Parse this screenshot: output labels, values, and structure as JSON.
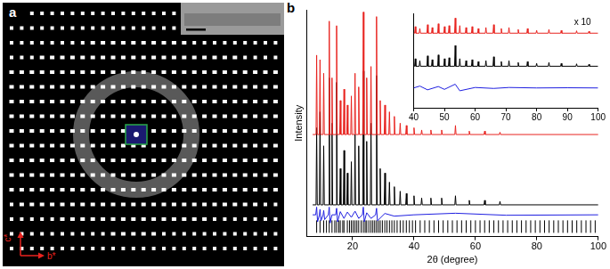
{
  "figure": {
    "panel_labels": [
      "a",
      "b"
    ],
    "image_axes": [
      "c*",
      "b*"
    ]
  },
  "chart_data": [
    {
      "type": "line",
      "x_label": "2θ (degree)",
      "y_label": "Intensity",
      "xlim": [
        5,
        100
      ],
      "xticks": [
        20,
        40,
        60,
        80,
        100
      ],
      "ylim": [
        0,
        100
      ],
      "tick_labels": "x",
      "grid": false,
      "series": [
        {
          "color": "#e8231f",
          "type": "line",
          "x": [
            7,
            8.1,
            8.3,
            8.5,
            9.2,
            9.4,
            9.6,
            10.4,
            10.6,
            10.8,
            12.2,
            12.4,
            12.6,
            13.1,
            13.3,
            13.5,
            14.6,
            14.8,
            15,
            15.8,
            16,
            16.2,
            17,
            17.2,
            17.4,
            18.1,
            18.3,
            18.5,
            19.4,
            19.6,
            19.8,
            20.6,
            20.8,
            21,
            21.8,
            22,
            22.2,
            23.3,
            23.5,
            23.7,
            24.4,
            24.6,
            24.8,
            25.8,
            26,
            26.2,
            27.6,
            27.8,
            28,
            28.8,
            29,
            29.2,
            30.3,
            30.5,
            30.7,
            31.8,
            32,
            32.2,
            33.4,
            33.6,
            33.8,
            35.3,
            35.5,
            35.7,
            37.3,
            37.5,
            37.7,
            39.8,
            40,
            40.2,
            42.3,
            42.5,
            42.7,
            45.3,
            45.5,
            45.7,
            48.8,
            49,
            49.2,
            53.3,
            53.5,
            53.7,
            57.8,
            58,
            58.2,
            62.8,
            63,
            63.2,
            67.8,
            68,
            68.2,
            100
          ],
          "values": [
            45,
            45,
            80,
            45,
            45,
            78,
            45,
            45,
            72,
            45,
            45,
            95,
            45,
            45,
            70,
            45,
            45,
            93,
            45,
            45,
            60,
            45,
            45,
            65,
            45,
            45,
            58,
            45,
            45,
            62,
            45,
            45,
            72,
            45,
            45,
            66,
            45,
            45,
            99,
            45,
            45,
            70,
            45,
            45,
            75,
            45,
            45,
            97,
            45,
            45,
            60,
            45,
            45,
            58,
            45,
            45,
            55,
            45,
            45,
            53,
            45,
            45,
            50,
            45,
            45,
            49,
            45,
            45,
            48,
            45,
            45,
            47,
            45,
            45,
            47,
            45,
            45,
            47,
            45,
            45,
            49,
            45,
            45,
            46.5,
            45,
            45,
            46.5,
            45,
            45,
            46,
            45,
            45
          ]
        },
        {
          "color": "#000000",
          "type": "line",
          "x": [
            7,
            8.1,
            8.3,
            8.5,
            9.2,
            9.4,
            9.6,
            10.4,
            10.6,
            10.8,
            12.2,
            12.4,
            12.6,
            13.1,
            13.3,
            13.5,
            14.6,
            14.8,
            15,
            15.8,
            16,
            16.2,
            17,
            17.2,
            17.4,
            18.1,
            18.3,
            18.5,
            19.4,
            19.6,
            19.8,
            20.6,
            20.8,
            21,
            21.8,
            22,
            22.2,
            23.3,
            23.5,
            23.7,
            24.4,
            24.6,
            24.8,
            25.8,
            26,
            26.2,
            27.6,
            27.8,
            28,
            28.8,
            29,
            29.2,
            30.3,
            30.5,
            30.7,
            31.8,
            32,
            32.2,
            33.4,
            33.6,
            33.8,
            35.3,
            35.5,
            35.7,
            37.3,
            37.5,
            37.7,
            39.8,
            40,
            40.2,
            42.3,
            42.5,
            42.7,
            45.3,
            45.5,
            45.7,
            48.8,
            49,
            49.2,
            53.3,
            53.5,
            53.7,
            57.8,
            58,
            58.2,
            62.8,
            63,
            63.2,
            67.8,
            68,
            68.2,
            100
          ],
          "values": [
            14,
            14,
            48,
            14,
            14,
            55,
            14,
            14,
            40,
            14,
            14,
            70,
            14,
            14,
            50,
            14,
            14,
            68,
            14,
            14,
            30,
            14,
            14,
            38,
            14,
            14,
            28,
            14,
            14,
            33,
            14,
            14,
            45,
            14,
            14,
            40,
            14,
            14,
            73,
            14,
            14,
            42,
            14,
            14,
            50,
            14,
            14,
            71,
            14,
            14,
            30,
            14,
            14,
            28,
            14,
            14,
            24,
            14,
            14,
            22,
            14,
            14,
            20,
            14,
            14,
            19,
            14,
            14,
            18,
            14,
            14,
            17,
            14,
            14,
            17,
            14,
            14,
            17,
            14,
            14,
            18,
            14,
            14,
            16,
            14,
            14,
            16,
            14,
            14,
            15.5,
            14,
            14
          ]
        },
        {
          "color": "#1f1fe0",
          "type": "line",
          "x": [
            7,
            8.0,
            8.3,
            8.6,
            9.2,
            9.4,
            9.7,
            10.4,
            10.6,
            10.9,
            12.1,
            12.4,
            12.7,
            13.3,
            14.5,
            14.8,
            15.1,
            16,
            17.2,
            18.3,
            19.6,
            20.8,
            22,
            23.2,
            23.5,
            23.8,
            24.6,
            26,
            27.5,
            27.8,
            28.1,
            30.5,
            33.6,
            40,
            53.5,
            70,
            100
          ],
          "values": [
            9.6,
            9.6,
            13,
            6.5,
            9.6,
            12,
            7,
            9.6,
            11.5,
            7.5,
            9.6,
            13,
            6,
            9.6,
            9.6,
            12.5,
            6.5,
            11,
            8,
            10.8,
            8.5,
            11.2,
            8,
            9.6,
            13,
            6.5,
            10.5,
            8,
            9.6,
            12.5,
            7,
            10.2,
            9,
            9.6,
            10.3,
            9.4,
            9.6
          ]
        },
        {
          "color": "#000000",
          "type": "scatter",
          "marker": "vline",
          "x": [
            8.3,
            9.4,
            10.6,
            11.5,
            12.4,
            13.3,
            14.2,
            14.8,
            15.5,
            16.0,
            16.8,
            17.2,
            18.3,
            19.0,
            19.6,
            20.2,
            20.8,
            21.4,
            22.0,
            22.8,
            23.5,
            24.1,
            24.6,
            25.3,
            26.0,
            26.6,
            27.2,
            27.8,
            28.4,
            29.0,
            29.7,
            30.5,
            31.2,
            32.0,
            32.8,
            33.6,
            34.5,
            35.5,
            36.5,
            37.5,
            38.5,
            39.5,
            40.5,
            42.0,
            43.5,
            45.0,
            46.5,
            48.0,
            49.5,
            51.0,
            52.5,
            54.0,
            55.5,
            57.0,
            58.5,
            60.0,
            61.5,
            63.0,
            64.5,
            66.0,
            67.5,
            69.0,
            70.5,
            72.0,
            73.5,
            75.0,
            76.5,
            78.0,
            79.5,
            81.0,
            82.5,
            84.0,
            85.5,
            87.0,
            88.5,
            90.0,
            91.5,
            93.0,
            94.5,
            96.0,
            97.5,
            99.0
          ],
          "values": [
            4.4,
            4.4,
            4.4,
            4.4,
            4.4,
            4.4,
            4.4,
            4.4,
            4.4,
            4.4,
            4.4,
            4.4,
            4.4,
            4.4,
            4.4,
            4.4,
            4.4,
            4.4,
            4.4,
            4.4,
            4.4,
            4.4,
            4.4,
            4.4,
            4.4,
            4.4,
            4.4,
            4.4,
            4.4,
            4.4,
            4.4,
            4.4,
            4.4,
            4.4,
            4.4,
            4.4,
            4.4,
            4.4,
            4.4,
            4.4,
            4.4,
            4.4,
            4.4,
            4.4,
            4.4,
            4.4,
            4.4,
            4.4,
            4.4,
            4.4,
            4.4,
            4.4,
            4.4,
            4.4,
            4.4,
            4.4,
            4.4,
            4.4,
            4.4,
            4.4,
            4.4,
            4.4,
            4.4,
            4.4,
            4.4,
            4.4,
            4.4,
            4.4,
            4.4,
            4.4,
            4.4,
            4.4,
            4.4,
            4.4,
            4.4,
            4.4,
            4.4,
            4.4,
            4.4,
            4.4,
            4.4,
            4.4
          ]
        }
      ]
    },
    {
      "type": "line",
      "annotation": "x 10",
      "xlim": [
        40,
        100
      ],
      "xticks": [
        40,
        50,
        60,
        70,
        80,
        90,
        100
      ],
      "ylim": [
        0,
        100
      ],
      "tick_labels": "x",
      "grid": false,
      "series": [
        {
          "color": "#e8231f",
          "type": "line",
          "x": [
            40,
            40.3,
            40.5,
            40.7,
            41.8,
            42,
            42.2,
            44.3,
            44.5,
            44.7,
            45.8,
            46,
            46.2,
            47.8,
            48,
            48.2,
            49.8,
            50,
            50.2,
            51.3,
            51.5,
            51.7,
            53.3,
            53.5,
            53.7,
            54.8,
            55,
            55.2,
            56.8,
            57,
            57.2,
            58.8,
            59,
            59.2,
            60.8,
            61,
            61.2,
            63.3,
            63.5,
            63.7,
            65.8,
            66,
            66.2,
            68.3,
            68.5,
            68.7,
            70.8,
            71,
            71.2,
            73.8,
            74,
            74.2,
            76.8,
            77,
            77.2,
            79.8,
            80,
            80.2,
            83.8,
            84,
            84.2,
            87.8,
            88,
            88.2,
            92.8,
            93,
            93.2,
            96.8,
            97,
            97.2,
            100
          ],
          "values": [
            79,
            79,
            86,
            79,
            79,
            84,
            79,
            79,
            88,
            79,
            79,
            85,
            79,
            79,
            89,
            79,
            79,
            86,
            79,
            79,
            87,
            79,
            79,
            95,
            79,
            79,
            87,
            79,
            79,
            85,
            79,
            79,
            86,
            79,
            79,
            84,
            79,
            79,
            85,
            79,
            79,
            88,
            79,
            79,
            84,
            79,
            79,
            85,
            79,
            79,
            83,
            79,
            79,
            84,
            79,
            79,
            82,
            79,
            79,
            83,
            79,
            79,
            82,
            79,
            79,
            81.5,
            79,
            79,
            81,
            79,
            79
          ]
        },
        {
          "color": "#000000",
          "type": "line",
          "x": [
            40,
            40.3,
            40.5,
            40.7,
            41.8,
            42,
            42.2,
            44.3,
            44.5,
            44.7,
            45.8,
            46,
            46.2,
            47.8,
            48,
            48.2,
            49.8,
            50,
            50.2,
            51.3,
            51.5,
            51.7,
            53.3,
            53.5,
            53.7,
            54.8,
            55,
            55.2,
            56.8,
            57,
            57.2,
            58.8,
            59,
            59.2,
            60.8,
            61,
            61.2,
            63.3,
            63.5,
            63.7,
            65.8,
            66,
            66.2,
            68.3,
            68.5,
            68.7,
            70.8,
            71,
            71.2,
            73.8,
            74,
            74.2,
            76.8,
            77,
            77.2,
            79.8,
            80,
            80.2,
            83.8,
            84,
            84.2,
            87.8,
            88,
            88.2,
            92.8,
            93,
            93.2,
            96.8,
            97,
            97.2,
            100
          ],
          "values": [
            44,
            44,
            52,
            44,
            44,
            50,
            44,
            44,
            55,
            44,
            44,
            51,
            44,
            44,
            56,
            44,
            44,
            52,
            44,
            44,
            53,
            44,
            44,
            66,
            44,
            44,
            52,
            44,
            44,
            50,
            44,
            44,
            51,
            44,
            44,
            49,
            44,
            44,
            50,
            44,
            44,
            54,
            44,
            44,
            49,
            44,
            44,
            50,
            44,
            44,
            48,
            44,
            44,
            49,
            44,
            44,
            47,
            44,
            44,
            48,
            44,
            44,
            47,
            44,
            44,
            46.5,
            44,
            44,
            46,
            44,
            44
          ]
        },
        {
          "color": "#1f1fe0",
          "type": "line",
          "x": [
            40,
            42,
            44.5,
            48,
            50,
            53.5,
            55,
            60,
            66,
            71,
            80,
            90,
            100
          ],
          "values": [
            21,
            23,
            19,
            22.5,
            19.5,
            25,
            18,
            21.5,
            20.5,
            21.5,
            21,
            21.2,
            21
          ]
        }
      ]
    }
  ]
}
